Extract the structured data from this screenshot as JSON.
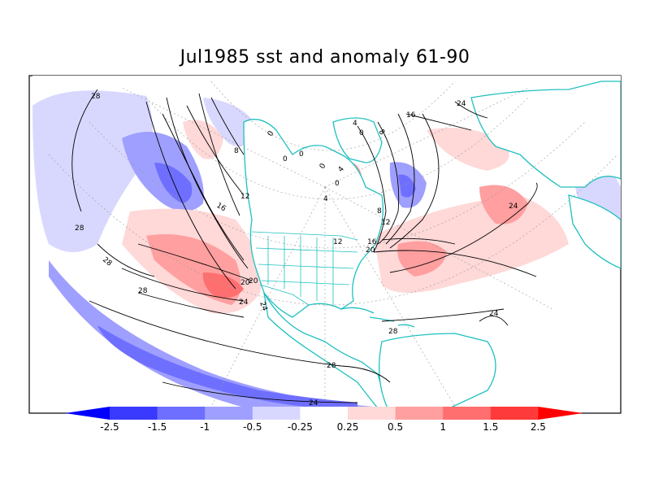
{
  "chart_data": {
    "type": "heatmap",
    "title": "Jul1985 sst and anomaly 61-90",
    "projection": "polar stereographic (North America / North Atlantic / North Pacific)",
    "contour_field": "sst",
    "contour_labels": [
      "28",
      "28",
      "28",
      "28",
      "28",
      "28",
      "24",
      "24",
      "24",
      "24",
      "20",
      "20",
      "20",
      "16",
      "16",
      "16",
      "12",
      "12",
      "12",
      "8",
      "8",
      "8",
      "4",
      "4",
      "4",
      "0",
      "0",
      "0",
      "0",
      "0",
      "0",
      "24",
      "24"
    ],
    "anomaly_levels": [
      -2.5,
      -1.5,
      -1,
      -0.5,
      -0.25,
      0.25,
      0.5,
      1,
      1.5,
      2.5
    ],
    "colorbar": {
      "tick_labels": [
        "-2.5",
        "-1.5",
        "-1",
        "-0.5",
        "-0.25",
        "0.25",
        "0.5",
        "1",
        "1.5",
        "2.5"
      ],
      "colors": [
        "#0000ff",
        "#3a3aff",
        "#6f6fff",
        "#9f9fff",
        "#d8d8ff",
        "#ffffff",
        "#ffd8d8",
        "#ff9f9f",
        "#ff6f6f",
        "#ff3a3a",
        "#ff0000"
      ]
    },
    "land_coastline_color": "#20c0c0",
    "grid": true
  }
}
